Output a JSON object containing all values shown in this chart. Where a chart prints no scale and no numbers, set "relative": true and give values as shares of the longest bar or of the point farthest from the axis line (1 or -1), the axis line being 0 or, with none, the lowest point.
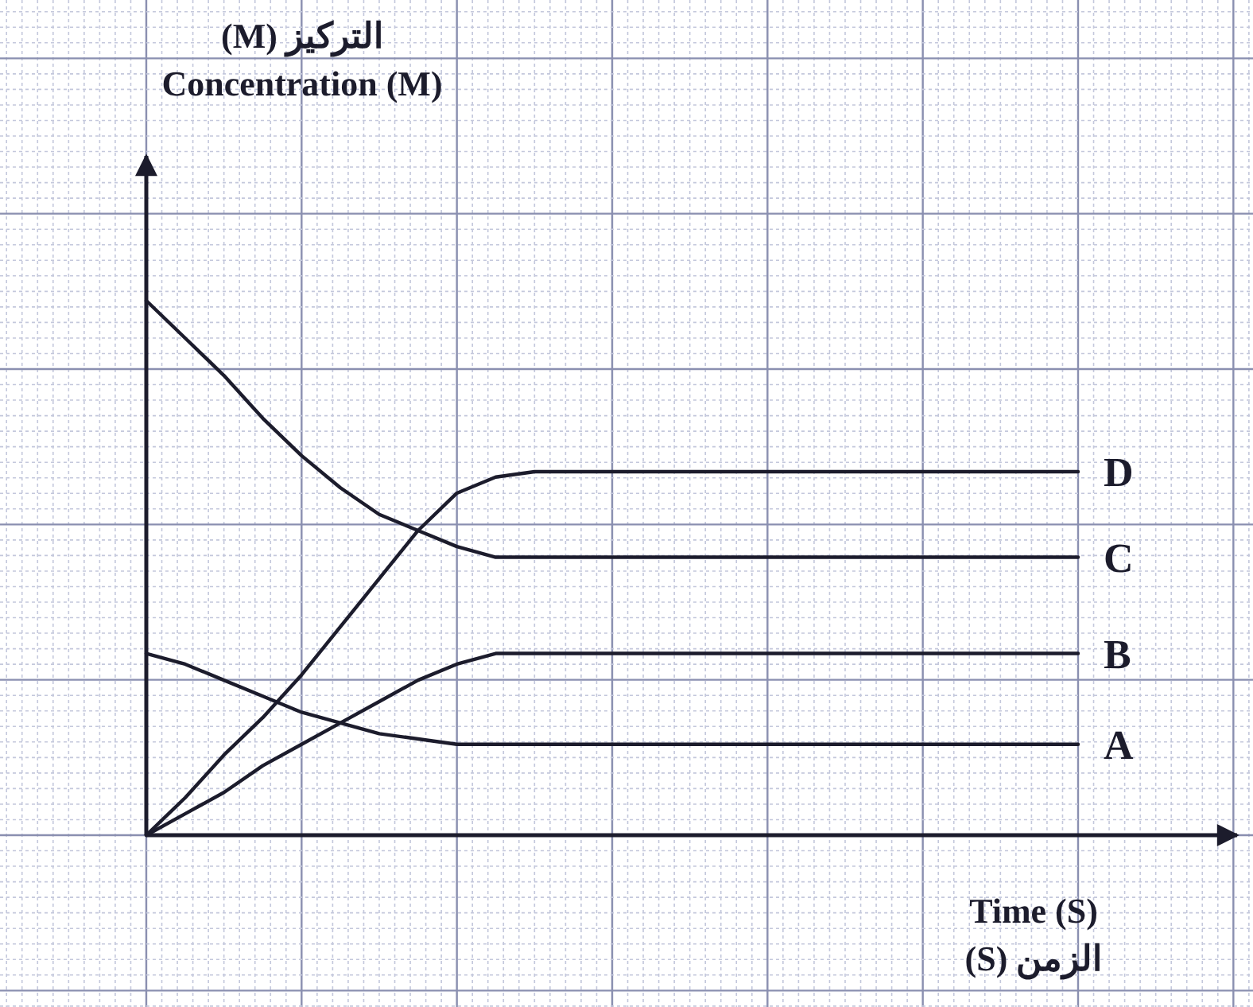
{
  "chart_data": {
    "type": "line",
    "relative": true,
    "grid": true,
    "annotations": [
      "التركيز (M)\nConcentration (M)",
      "Time (S)\nالزمن (S)"
    ],
    "categories": [
      null,
      null,
      null,
      null,
      null,
      null,
      null,
      null,
      null,
      null,
      null,
      null,
      null,
      null,
      null,
      null,
      null,
      null,
      null,
      null,
      null,
      null,
      null,
      null,
      null
    ],
    "series": [
      {
        "name": "A",
        "color": "#1c1c2c",
        "values": [
          0.34,
          0.32,
          0.29,
          0.26,
          0.23,
          0.21,
          0.19,
          0.18,
          0.17,
          0.17,
          0.17,
          0.17,
          0.17,
          0.17,
          0.17,
          0.17,
          0.17,
          0.17,
          0.17,
          0.17,
          0.17,
          0.17,
          0.17,
          0.17,
          0.17
        ]
      },
      {
        "name": "B",
        "color": "#1c1c2c",
        "values": [
          0,
          0.04,
          0.08,
          0.13,
          0.17,
          0.21,
          0.25,
          0.29,
          0.32,
          0.34,
          0.34,
          0.34,
          0.34,
          0.34,
          0.34,
          0.34,
          0.34,
          0.34,
          0.34,
          0.34,
          0.34,
          0.34,
          0.34,
          0.34,
          0.34
        ]
      },
      {
        "name": "C",
        "color": "#1c1c2c",
        "values": [
          1,
          0.93,
          0.86,
          0.78,
          0.71,
          0.65,
          0.6,
          0.57,
          0.54,
          0.52,
          0.52,
          0.52,
          0.52,
          0.52,
          0.52,
          0.52,
          0.52,
          0.52,
          0.52,
          0.52,
          0.52,
          0.52,
          0.52,
          0.52,
          0.52
        ]
      },
      {
        "name": "D",
        "color": "#1c1c2c",
        "values": [
          0,
          0.07,
          0.15,
          0.22,
          0.3,
          0.39,
          0.48,
          0.57,
          0.64,
          0.67,
          0.68,
          0.68,
          0.68,
          0.68,
          0.68,
          0.68,
          0.68,
          0.68,
          0.68,
          0.68,
          0.68,
          0.68,
          0.68,
          0.68,
          0.68
        ]
      }
    ]
  }
}
